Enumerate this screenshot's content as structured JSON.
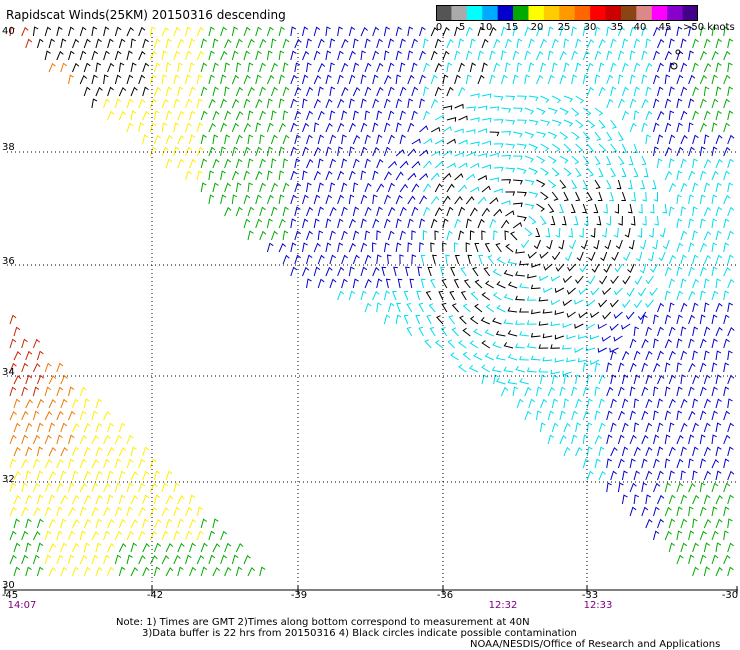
{
  "title": "Rapidscat Winds(25KM) 20150316 descending",
  "legend": {
    "labels": [
      "0",
      "5",
      "10",
      "15",
      "20",
      "25",
      "30",
      "35",
      "40",
      "45",
      ">50 knots"
    ],
    "colors": [
      "#555555",
      "#aaaaaa",
      "#00ffff",
      "#00aaff",
      "#0000cc",
      "#00aa00",
      "#ffff00",
      "#ffcc00",
      "#ff9900",
      "#ff6600",
      "#ff0000",
      "#cc0000",
      "#8b4513",
      "#dd8888",
      "#ff00ff",
      "#8800cc",
      "#440088"
    ]
  },
  "axes": {
    "lat_labels": [
      "40",
      "38",
      "36",
      "34",
      "32",
      "30"
    ],
    "lon_labels": [
      "-45",
      "-42",
      "-39",
      "-36",
      "-33",
      "-30"
    ]
  },
  "times": [
    "14:07",
    "12:32",
    "12:33"
  ],
  "notes": {
    "line1": "Note: 1) Times are GMT 2)Times along bottom correspond to measurement at 40N",
    "line2": "3)Data buffer is 22 hrs from 20150316 4) Black circles indicate possible contamination",
    "line3": "NOAA/NESDIS/Office of Research and Applications"
  },
  "colors": {
    "black": "#000000",
    "red": "#cc2200",
    "orange": "#ee7700",
    "yellow": "#ffee00",
    "green": "#00aa00",
    "blue": "#0000cc",
    "cyan": "#00ddee",
    "grid": "#000000"
  }
}
